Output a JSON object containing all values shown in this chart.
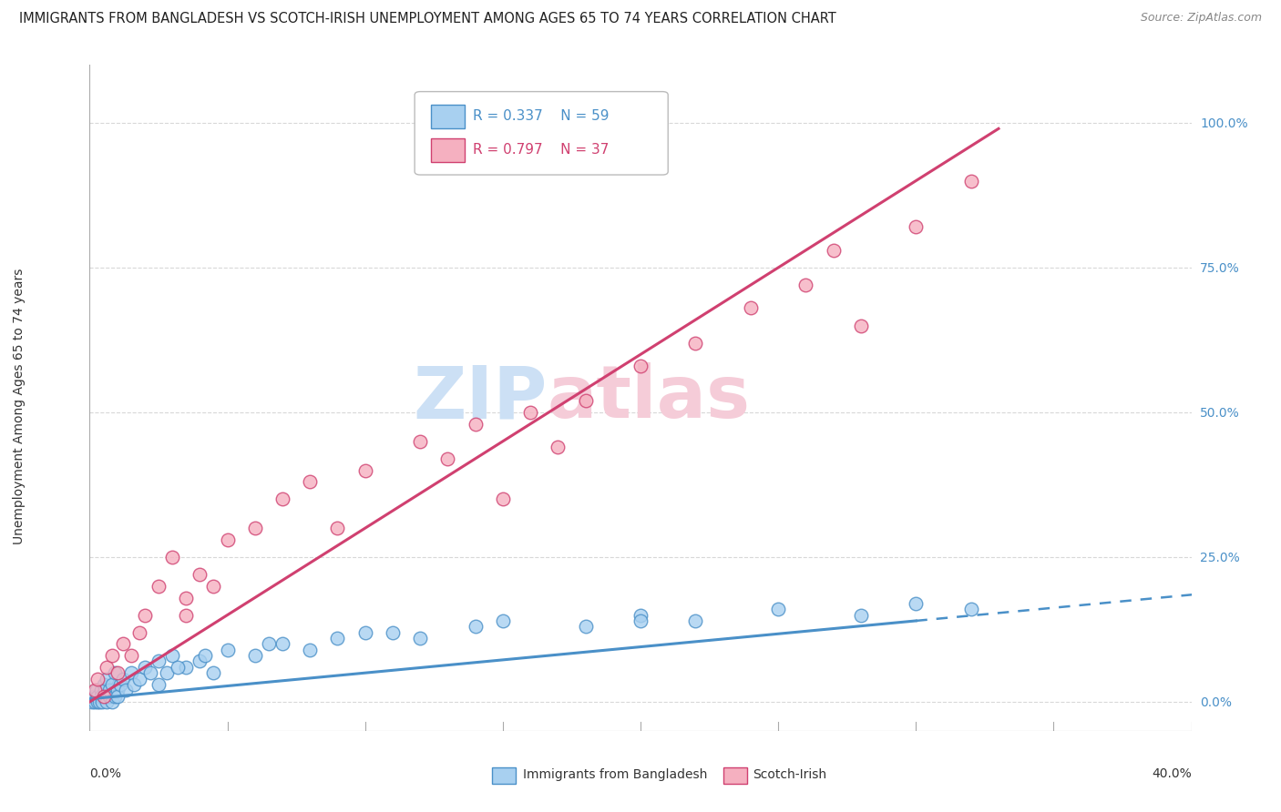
{
  "title": "IMMIGRANTS FROM BANGLADESH VS SCOTCH-IRISH UNEMPLOYMENT AMONG AGES 65 TO 74 YEARS CORRELATION CHART",
  "source": "Source: ZipAtlas.com",
  "ylabel": "Unemployment Among Ages 65 to 74 years",
  "right_ytick_vals": [
    0,
    25,
    50,
    75,
    100
  ],
  "series1_label": "Immigrants from Bangladesh",
  "series1_R": "0.337",
  "series1_N": "59",
  "series1_color": "#a8d0f0",
  "series1_edge": "#4a90c8",
  "series2_label": "Scotch-Irish",
  "series2_R": "0.797",
  "series2_N": "37",
  "series2_color": "#f5b0c0",
  "series2_edge": "#d04070",
  "watermark_zip_color": "#cce0f5",
  "watermark_atlas_color": "#f5ccd8",
  "xmin": 0,
  "xmax": 40,
  "ymin": -5,
  "ymax": 110,
  "background_color": "#ffffff",
  "grid_color": "#d8d8d8",
  "legend_R_color": "#4a90c8",
  "legend_R2_color": "#d04070",
  "s1_x": [
    0.1,
    0.15,
    0.2,
    0.25,
    0.3,
    0.3,
    0.35,
    0.4,
    0.4,
    0.45,
    0.5,
    0.5,
    0.55,
    0.6,
    0.6,
    0.7,
    0.7,
    0.8,
    0.8,
    0.9,
    0.9,
    1.0,
    1.0,
    1.1,
    1.2,
    1.3,
    1.5,
    1.6,
    1.8,
    2.0,
    2.2,
    2.5,
    2.5,
    3.0,
    3.5,
    4.0,
    4.5,
    5.0,
    6.0,
    7.0,
    8.0,
    10.0,
    12.0,
    15.0,
    18.0,
    20.0,
    22.0,
    25.0,
    28.0,
    30.0,
    32.0,
    2.8,
    3.2,
    4.2,
    6.5,
    9.0,
    11.0,
    14.0,
    20.0
  ],
  "s1_y": [
    0,
    1,
    0,
    2,
    0,
    1,
    0,
    2,
    1,
    0,
    3,
    1,
    2,
    0,
    4,
    1,
    2,
    3,
    0,
    1,
    5,
    2,
    1,
    3,
    4,
    2,
    5,
    3,
    4,
    6,
    5,
    7,
    3,
    8,
    6,
    7,
    5,
    9,
    8,
    10,
    9,
    12,
    11,
    14,
    13,
    15,
    14,
    16,
    15,
    17,
    16,
    5,
    6,
    8,
    10,
    11,
    12,
    13,
    14
  ],
  "s2_x": [
    0.2,
    0.3,
    0.5,
    0.6,
    0.8,
    1.0,
    1.2,
    1.5,
    1.8,
    2.0,
    2.5,
    3.0,
    3.5,
    4.0,
    5.0,
    6.0,
    7.0,
    8.0,
    10.0,
    12.0,
    13.0,
    14.0,
    15.0,
    16.0,
    17.0,
    18.0,
    20.0,
    22.0,
    24.0,
    26.0,
    27.0,
    28.0,
    30.0,
    32.0,
    3.5,
    4.5,
    9.0
  ],
  "s2_y": [
    2,
    4,
    1,
    6,
    8,
    5,
    10,
    8,
    12,
    15,
    20,
    25,
    18,
    22,
    28,
    30,
    35,
    38,
    40,
    45,
    42,
    48,
    35,
    50,
    44,
    52,
    58,
    62,
    68,
    72,
    78,
    65,
    82,
    90,
    15,
    20,
    30
  ]
}
